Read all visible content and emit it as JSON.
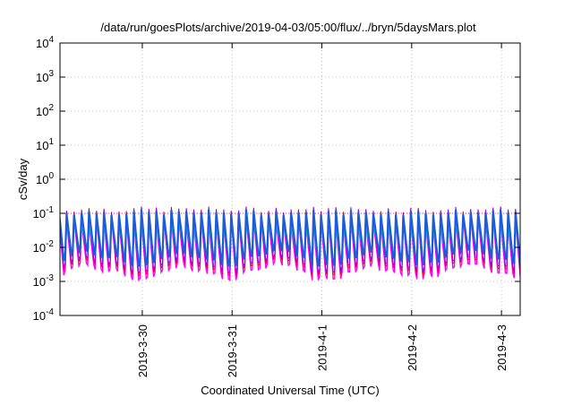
{
  "chart_data": {
    "type": "line",
    "title": "/data/run/goesPlots/archive/2019-04-03/05:00/flux/../bryn/5daysMars.plot",
    "xlabel": "Coordinated Universal Time (UTC)",
    "ylabel": "cSv/day",
    "y_scale": "log",
    "ylim": [
      0.0001,
      10000
    ],
    "y_ticks": [
      {
        "base": "10",
        "exp": "-4"
      },
      {
        "base": "10",
        "exp": "-3"
      },
      {
        "base": "10",
        "exp": "-2"
      },
      {
        "base": "10",
        "exp": "-1"
      },
      {
        "base": "10",
        "exp": "0"
      },
      {
        "base": "10",
        "exp": "1"
      },
      {
        "base": "10",
        "exp": "2"
      },
      {
        "base": "10",
        "exp": "3"
      },
      {
        "base": "10",
        "exp": "4"
      }
    ],
    "xlim": [
      "2019-03-29T02:00",
      "2019-04-03T05:00"
    ],
    "x_ticks": [
      {
        "label": "2019-3-30",
        "value": "2019-03-30T00:00"
      },
      {
        "label": "2019-3-31",
        "value": "2019-03-31T00:00"
      },
      {
        "label": "2019-4-1",
        "value": "2019-04-01T00:00"
      },
      {
        "label": "2019-4-2",
        "value": "2019-04-02T00:00"
      },
      {
        "label": "2019-4-3",
        "value": "2019-04-03T00:00"
      }
    ],
    "grid": true,
    "reference_level": 0.1,
    "cycle_hours": 2,
    "series_colors": [
      "#ff0000",
      "#8b00ff",
      "#00bfbf",
      "#ff00ff",
      "#1e5bdc"
    ],
    "envelope": {
      "peak_max": [
        0.09,
        0.17
      ],
      "peak_mid": [
        0.045,
        0.08
      ],
      "trough_min": [
        0.001,
        0.004
      ]
    }
  }
}
